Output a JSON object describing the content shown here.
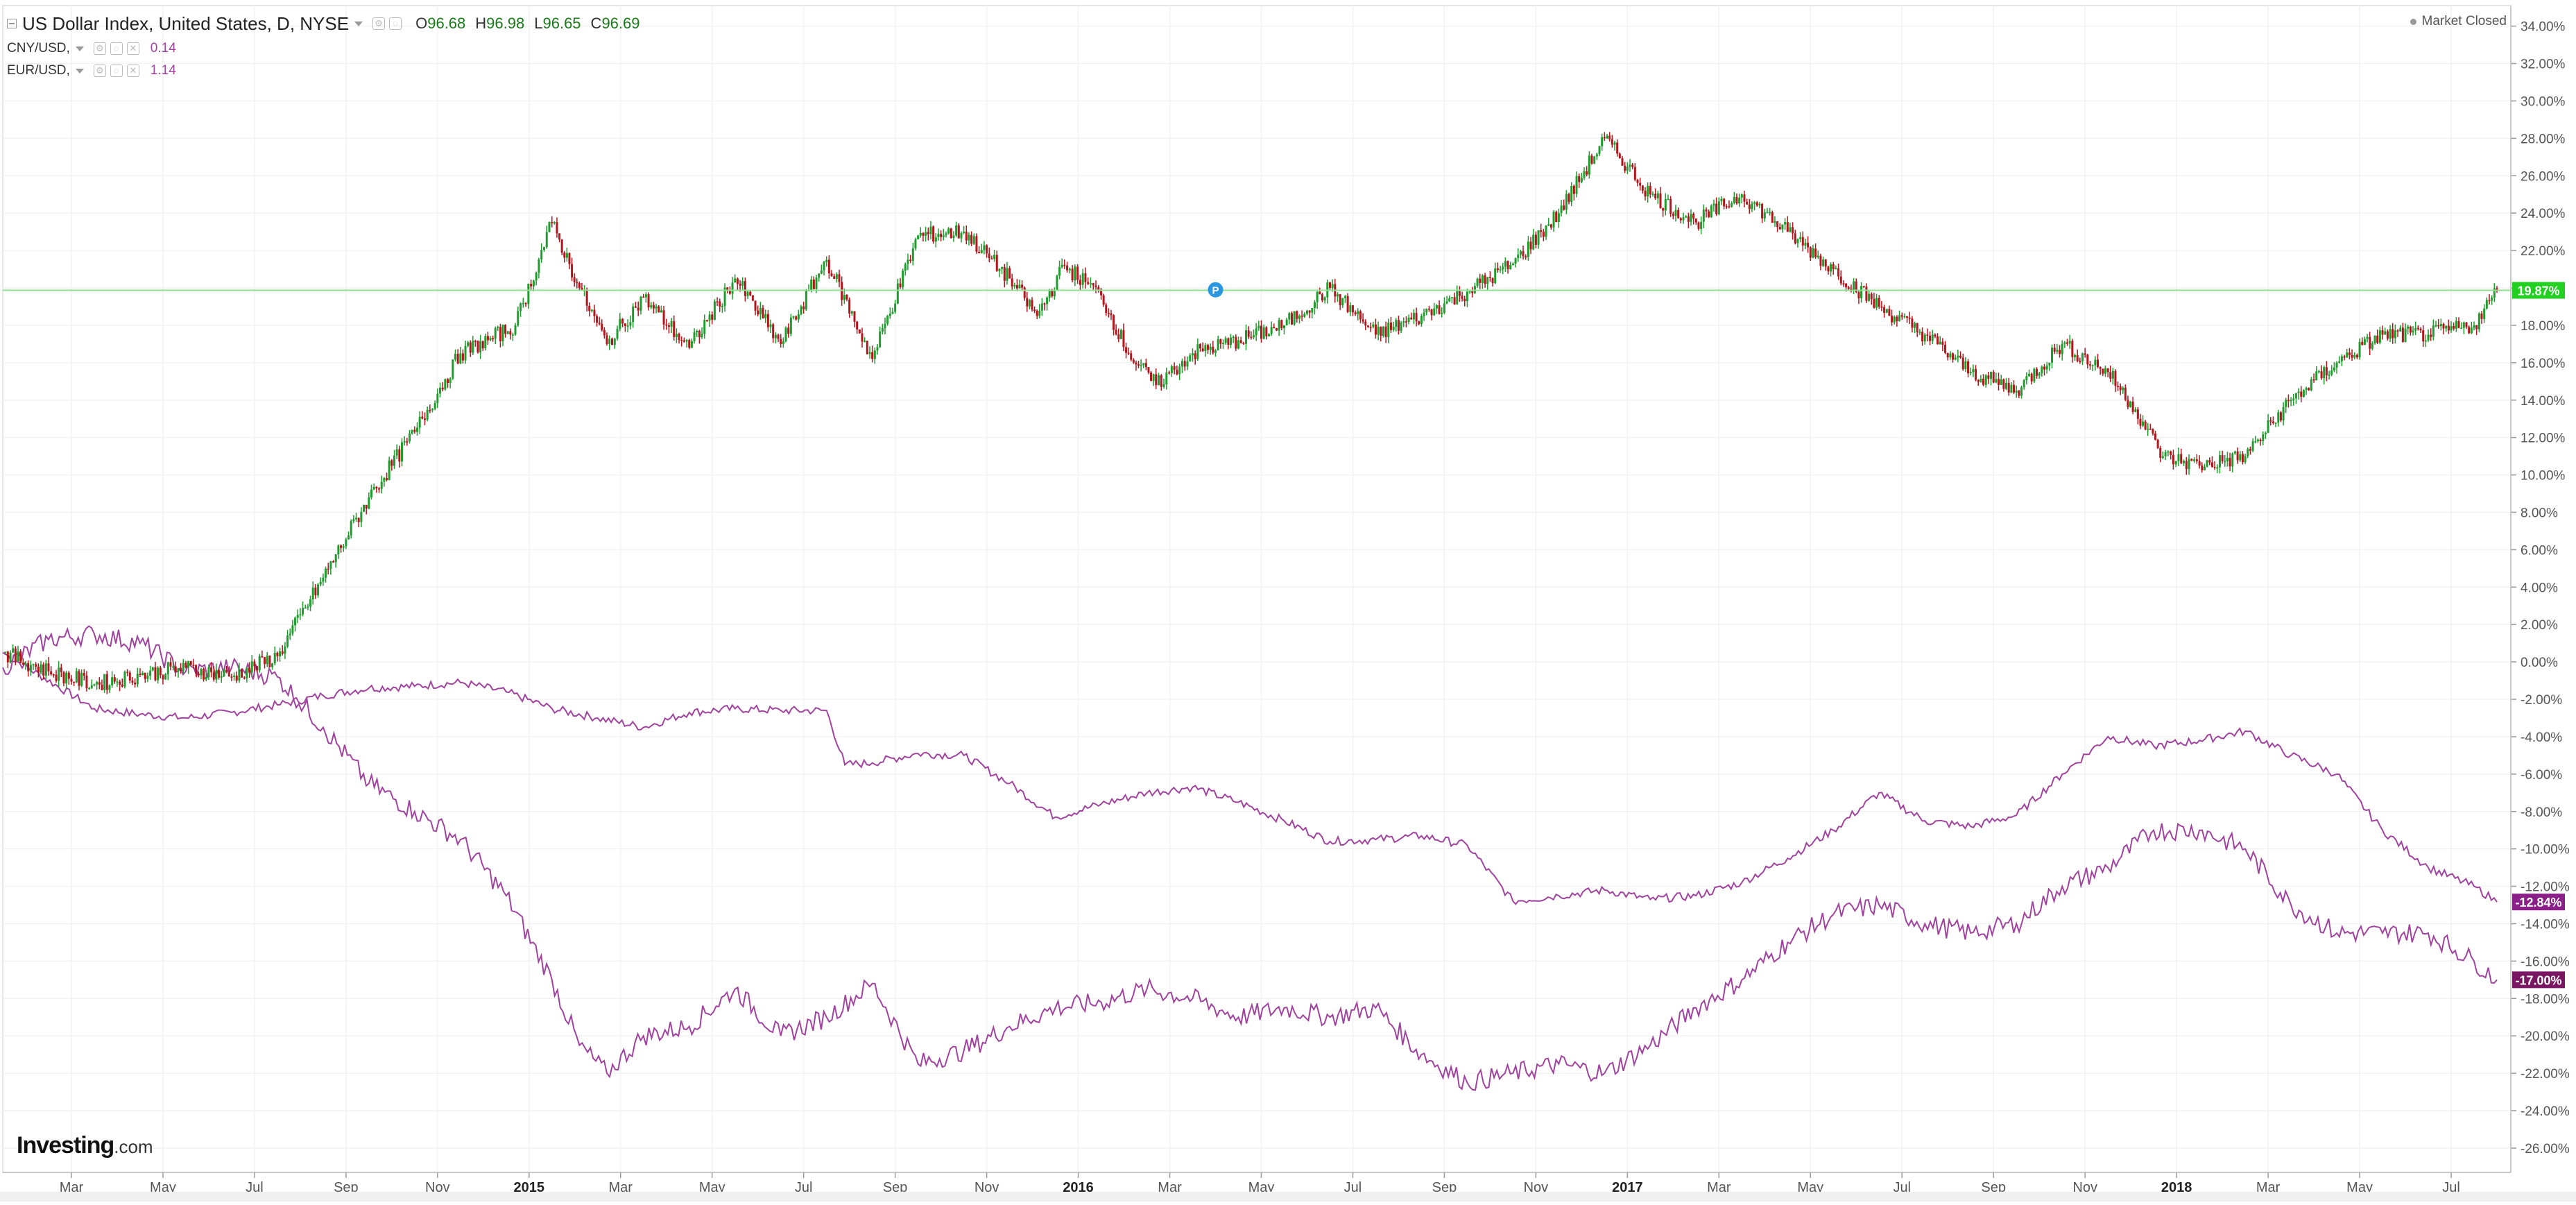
{
  "header": {
    "main_symbol": "US Dollar Index, United States, D, NYSE",
    "ohlc": [
      {
        "key": "O",
        "value": "96.68"
      },
      {
        "key": "H",
        "value": "96.98"
      },
      {
        "key": "L",
        "value": "96.65"
      },
      {
        "key": "C",
        "value": "96.69"
      }
    ],
    "compare": [
      {
        "symbol": "CNY/USD,",
        "value": "0.14"
      },
      {
        "symbol": "EUR/USD,",
        "value": "1.14"
      }
    ],
    "status": "Market Closed"
  },
  "brand": {
    "name": "Investing",
    "domain": ".com"
  },
  "colors": {
    "up": "#1e9c2c",
    "down": "#b2151c",
    "compare_line": "#a0439e",
    "last_price_line": "#8fe08f",
    "last_price_badge": "#22d022",
    "cny_badge": "#8a1f88",
    "eur_badge": "#7a1763",
    "grid": "#f2f2f2",
    "axis_text": "#555555",
    "marker": "#2b97e0"
  },
  "chart_data": {
    "type": "line",
    "subtype": "candlestick with comparison lines",
    "title": "US Dollar Index, United States, D, NYSE",
    "x_tick_labels": [
      "Mar",
      "May",
      "Jul",
      "Sep",
      "Nov",
      "2015",
      "Mar",
      "May",
      "Jul",
      "Sep",
      "Nov",
      "2016",
      "Mar",
      "May",
      "Jul",
      "Sep",
      "Nov",
      "2017",
      "Mar",
      "May",
      "Jul",
      "Sep",
      "Nov",
      "2018",
      "Mar",
      "May",
      "Jul"
    ],
    "x_range": [
      0,
      27.25
    ],
    "y_tick_labels": [
      "34.00%",
      "32.00%",
      "30.00%",
      "28.00%",
      "26.00%",
      "24.00%",
      "22.00%",
      "20.00%",
      "18.00%",
      "16.00%",
      "14.00%",
      "12.00%",
      "10.00%",
      "8.00%",
      "6.00%",
      "4.00%",
      "2.00%",
      "0.00%",
      "-2.00%",
      "-4.00%",
      "-6.00%",
      "-8.00%",
      "-10.00%",
      "-12.00%",
      "-14.00%",
      "-16.00%",
      "-18.00%",
      "-20.00%",
      "-22.00%",
      "-24.00%",
      "-26.00%"
    ],
    "ylim": [
      -27.3,
      35.1
    ],
    "y_unit": "%",
    "grid": true,
    "series": [
      {
        "name": "US Dollar Index",
        "style": "candlestick",
        "x": [
          0,
          0.5,
          1,
          1.5,
          2,
          2.5,
          3,
          3.5,
          4,
          4.5,
          5,
          5.3,
          5.6,
          6,
          6.3,
          6.6,
          7,
          7.5,
          8,
          8.5,
          9,
          9.5,
          10,
          10.5,
          11,
          11.3,
          11.6,
          12,
          12.3,
          12.6,
          13,
          13.5,
          14,
          14.5,
          15,
          15.5,
          16,
          16.5,
          17,
          17.5,
          18,
          18.5,
          19,
          19.5,
          20,
          20.5,
          21,
          21.5,
          22,
          22.5,
          23,
          23.3,
          23.6,
          24,
          24.5,
          25,
          25.5,
          26,
          26.5,
          27,
          27.25
        ],
        "values": [
          0.5,
          -0.5,
          -1.2,
          -0.7,
          -0.3,
          -0.8,
          0.3,
          4.5,
          8.8,
          12.3,
          16.5,
          17.2,
          18.0,
          23.5,
          20.0,
          17.0,
          19.5,
          16.8,
          20.5,
          17.0,
          21.5,
          16.2,
          22.8,
          23.0,
          20.5,
          18.5,
          21.2,
          19.6,
          16.5,
          14.8,
          16.5,
          17.2,
          18.0,
          20.0,
          17.5,
          18.5,
          19.8,
          21.3,
          24.0,
          28.0,
          25.0,
          23.5,
          25.0,
          23.0,
          21.0,
          19.0,
          17.5,
          15.5,
          14.5,
          17.0,
          15.5,
          13.5,
          11.0,
          10.5,
          11.0,
          14.0,
          16.0,
          17.5,
          17.5,
          18.0,
          19.87
        ]
      },
      {
        "name": "CNY/USD",
        "style": "line",
        "x": [
          0,
          1,
          1.5,
          2,
          2.5,
          3,
          3.5,
          4,
          4.5,
          5,
          5.5,
          6,
          6.5,
          7,
          7.5,
          8,
          8.5,
          9,
          9.2,
          9.5,
          10,
          10.5,
          11,
          11.5,
          12,
          12.5,
          13,
          13.5,
          14,
          14.5,
          15,
          15.5,
          16,
          16.5,
          17,
          17.5,
          18,
          18.5,
          19,
          19.5,
          20,
          20.5,
          21,
          21.5,
          22,
          22.5,
          23,
          23.5,
          24,
          24.5,
          25,
          25.5,
          26,
          26.5,
          27,
          27.25
        ],
        "values": [
          0.5,
          -2.5,
          -2.8,
          -3.0,
          -2.7,
          -2.3,
          -1.8,
          -1.4,
          -1.3,
          -1.1,
          -1.6,
          -2.5,
          -3.0,
          -3.5,
          -2.7,
          -2.5,
          -2.6,
          -2.6,
          -5.5,
          -5.4,
          -4.9,
          -5.0,
          -6.5,
          -8.3,
          -7.6,
          -7.0,
          -6.7,
          -7.5,
          -8.5,
          -9.6,
          -9.5,
          -9.3,
          -9.8,
          -12.8,
          -12.5,
          -12.2,
          -12.7,
          -12.5,
          -11.8,
          -10.5,
          -9.0,
          -7.0,
          -8.5,
          -8.8,
          -8.2,
          -6.0,
          -4.0,
          -4.5,
          -4.2,
          -3.7,
          -5.0,
          -6.0,
          -9.0,
          -11.0,
          -12.0,
          -12.84
        ]
      },
      {
        "name": "EUR/USD",
        "style": "line",
        "x": [
          0,
          0.5,
          1,
          1.5,
          2,
          2.5,
          3,
          3.5,
          4,
          4.5,
          5,
          5.5,
          6,
          6.3,
          6.6,
          7,
          7.5,
          8,
          8.5,
          9,
          9.5,
          10,
          10.5,
          11,
          11.5,
          12,
          12.5,
          13,
          13.5,
          14,
          14.5,
          15,
          15.5,
          16,
          16.5,
          17,
          17.5,
          18,
          18.5,
          19,
          19.5,
          20,
          20.5,
          21,
          21.5,
          22,
          22.5,
          23,
          23.5,
          24,
          24.5,
          25,
          25.5,
          26,
          26.5,
          27,
          27.25
        ],
        "values": [
          -0.3,
          1.2,
          1.5,
          1.0,
          -0.5,
          -0.3,
          -0.8,
          -3.5,
          -6.5,
          -8.0,
          -9.5,
          -12.5,
          -17.0,
          -20.5,
          -22.0,
          -20.0,
          -19.5,
          -17.5,
          -20.0,
          -19.0,
          -17.2,
          -21.5,
          -20.8,
          -19.5,
          -18.5,
          -18.2,
          -17.5,
          -18.0,
          -19.0,
          -18.5,
          -19.0,
          -18.5,
          -21.0,
          -22.5,
          -22.0,
          -21.5,
          -22.0,
          -20.5,
          -18.5,
          -17.0,
          -15.0,
          -13.5,
          -13.0,
          -14.0,
          -14.5,
          -14.0,
          -12.0,
          -11.0,
          -9.0,
          -9.0,
          -10.0,
          -13.0,
          -14.5,
          -14.5,
          -14.5,
          -16.0,
          -17.0
        ]
      }
    ],
    "last_values": {
      "US Dollar Index": "19.87%",
      "CNY/USD": "-12.84%",
      "EUR/USD": "-17.00%"
    },
    "marker_label": "P",
    "marker_x": 13.25
  }
}
